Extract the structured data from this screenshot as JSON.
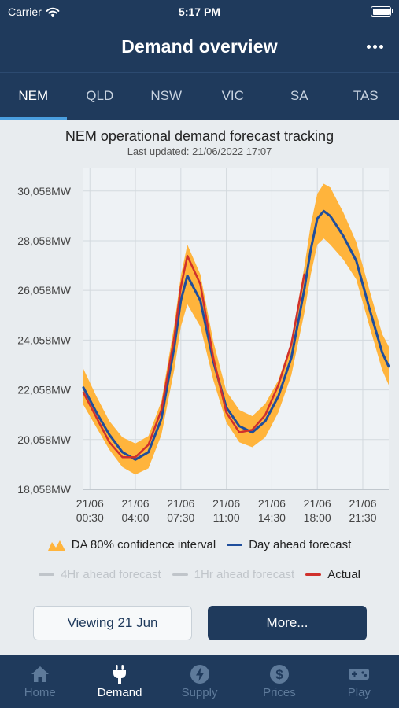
{
  "status_bar": {
    "carrier": "Carrier",
    "time": "5:17 PM"
  },
  "header": {
    "title": "Demand overview",
    "more_icon": "ellipsis-icon"
  },
  "region_tabs": [
    {
      "label": "NEM",
      "active": true
    },
    {
      "label": "QLD",
      "active": false
    },
    {
      "label": "NSW",
      "active": false
    },
    {
      "label": "VIC",
      "active": false
    },
    {
      "label": "SA",
      "active": false
    },
    {
      "label": "TAS",
      "active": false
    }
  ],
  "chart_header": {
    "title": "NEM operational demand forecast tracking",
    "subtitle": "Last updated: 21/06/2022 17:07"
  },
  "colors": {
    "nav": "#1f3a5c",
    "band": "#ffb43c",
    "forecast": "#1f4e9c",
    "actual": "#d0302c",
    "inactive": "#c0c5ca"
  },
  "chart_data": {
    "type": "line",
    "ylim": [
      18058,
      31000
    ],
    "xlim": [
      0,
      23.5
    ],
    "yticks": [
      18058,
      20058,
      22058,
      24058,
      26058,
      28058,
      30058
    ],
    "ytick_labels": [
      "18,058MW",
      "20,058MW",
      "22,058MW",
      "24,058MW",
      "26,058MW",
      "28,058MW",
      "30,058MW"
    ],
    "xticks": [
      0.5,
      4,
      7.5,
      11,
      14.5,
      18,
      21.5
    ],
    "xtick_labels": [
      [
        "21/06",
        "00:30"
      ],
      [
        "21/06",
        "04:00"
      ],
      [
        "21/06",
        "07:30"
      ],
      [
        "21/06",
        "11:00"
      ],
      [
        "21/06",
        "14:30"
      ],
      [
        "21/06",
        "18:00"
      ],
      [
        "21/06",
        "21:30"
      ]
    ],
    "grid": true,
    "series": [
      {
        "name": "DA 80% confidence interval",
        "kind": "band",
        "x": [
          0,
          1,
          2,
          3,
          4,
          5,
          6,
          7,
          7.5,
          8,
          9,
          10,
          11,
          12,
          13,
          14,
          15,
          16,
          17,
          17.5,
          18,
          18.5,
          19,
          20,
          21,
          22,
          23,
          23.5
        ],
        "low": [
          21450,
          20550,
          19650,
          18950,
          18650,
          18900,
          20250,
          22900,
          24600,
          25500,
          24600,
          22450,
          20750,
          19950,
          19750,
          20150,
          21150,
          22650,
          25150,
          26700,
          27900,
          28150,
          27900,
          27300,
          26500,
          24650,
          22850,
          22250
        ],
        "high": [
          22900,
          21800,
          20800,
          20150,
          19900,
          20200,
          21600,
          24700,
          26650,
          27900,
          26700,
          24000,
          22000,
          21250,
          21000,
          21500,
          22450,
          24000,
          27000,
          28700,
          29950,
          30350,
          30200,
          29200,
          28000,
          26100,
          24300,
          23800
        ]
      },
      {
        "name": "Day ahead forecast",
        "kind": "line",
        "x": [
          0,
          1,
          2,
          3,
          4,
          5,
          6,
          7,
          7.5,
          8,
          9,
          10,
          11,
          12,
          13,
          14,
          15,
          16,
          17,
          17.5,
          18,
          18.5,
          19,
          20,
          21,
          22,
          23,
          23.5
        ],
        "values": [
          22150,
          21150,
          20250,
          19550,
          19250,
          19550,
          20900,
          23800,
          25650,
          26650,
          25650,
          23200,
          21350,
          20600,
          20350,
          20800,
          21800,
          23350,
          26100,
          27700,
          28950,
          29250,
          29050,
          28250,
          27250,
          25350,
          23550,
          23000
        ]
      },
      {
        "name": "4Hr ahead forecast",
        "kind": "line",
        "values": []
      },
      {
        "name": "1Hr ahead forecast",
        "kind": "line",
        "values": []
      },
      {
        "name": "Actual",
        "kind": "line",
        "x": [
          0,
          1,
          2,
          3,
          4,
          5,
          6,
          7,
          7.5,
          8,
          9,
          10,
          11,
          12,
          13,
          14,
          15,
          16,
          17
        ],
        "values": [
          21950,
          20950,
          19950,
          19350,
          19350,
          19850,
          21250,
          24200,
          26200,
          27450,
          26300,
          23350,
          21150,
          20350,
          20450,
          21050,
          22250,
          23900,
          26700
        ]
      }
    ]
  },
  "legend": {
    "row1": [
      {
        "label": "DA 80% confidence interval",
        "type": "band",
        "icon": "confidence-band-icon"
      },
      {
        "label": "Day ahead forecast",
        "type": "line",
        "color": "#1f4e9c"
      }
    ],
    "row2": [
      {
        "label": "4Hr ahead forecast",
        "type": "line",
        "color": "#c0c5ca"
      },
      {
        "label": "1Hr ahead forecast",
        "type": "line",
        "color": "#c0c5ca"
      },
      {
        "label": "Actual",
        "type": "line",
        "color": "#d0302c"
      }
    ]
  },
  "buttons": {
    "viewing": "Viewing 21 Jun",
    "more": "More..."
  },
  "tab_bar": [
    {
      "label": "Home",
      "icon": "home-icon",
      "active": false
    },
    {
      "label": "Demand",
      "icon": "plug-icon",
      "active": true
    },
    {
      "label": "Supply",
      "icon": "lightning-icon",
      "active": false
    },
    {
      "label": "Prices",
      "icon": "dollar-icon",
      "active": false
    },
    {
      "label": "Play",
      "icon": "gamepad-icon",
      "active": false
    }
  ]
}
